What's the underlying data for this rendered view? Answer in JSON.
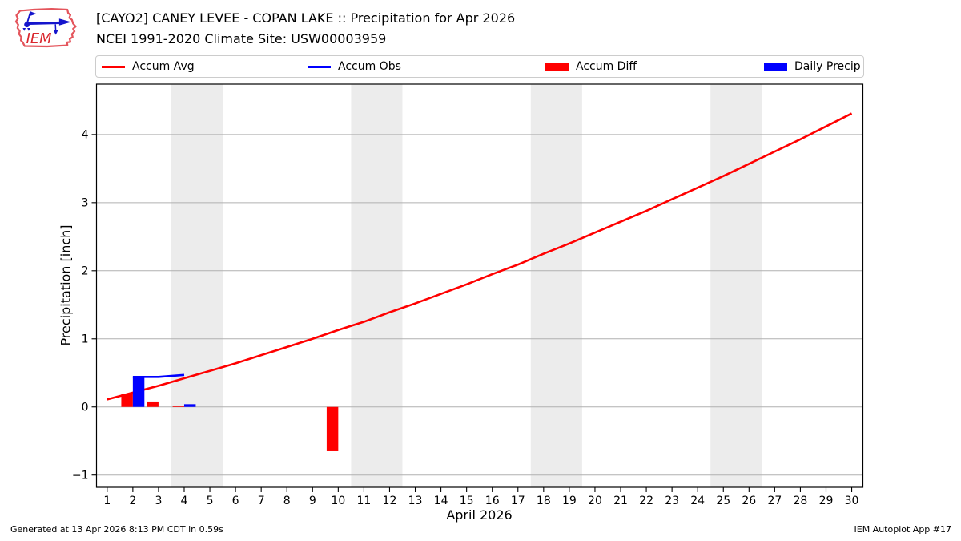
{
  "header": {
    "title_line1": "[CAYO2] CANEY LEVEE - COPAN LAKE :: Precipitation for Apr 2026",
    "title_line2": "NCEI 1991-2020 Climate Site: USW00003959",
    "logo_text": "IEM"
  },
  "legend": [
    {
      "label": "Accum Avg",
      "swatch": "line",
      "color": "#ff0000"
    },
    {
      "label": "Accum Obs",
      "swatch": "line",
      "color": "#0000ff"
    },
    {
      "label": "Accum Diff",
      "swatch": "patch",
      "color": "#ff0000"
    },
    {
      "label": "Daily Precip",
      "swatch": "patch",
      "color": "#0000ff"
    }
  ],
  "chart_data": {
    "type": "mixed line+bar",
    "title": "[CAYO2] CANEY LEVEE - COPAN LAKE :: Precipitation for Apr 2026",
    "subtitle": "NCEI 1991-2020 Climate Site: USW00003959",
    "xlabel": "April 2026",
    "ylabel": "Precipitation [inch]",
    "xlim": [
      0.585,
      30.435
    ],
    "ylim": [
      -1.18,
      4.74
    ],
    "xticks": [
      1,
      2,
      3,
      4,
      5,
      6,
      7,
      8,
      9,
      10,
      11,
      12,
      13,
      14,
      15,
      16,
      17,
      18,
      19,
      20,
      21,
      22,
      23,
      24,
      25,
      26,
      27,
      28,
      29,
      30
    ],
    "yticks": [
      -1,
      0,
      1,
      2,
      3,
      4
    ],
    "grid": "horizontal",
    "grid_color": "#b0b0b0",
    "weekend_band_color": "#ececec",
    "weekend_bands": [
      [
        3.5,
        5.5
      ],
      [
        10.5,
        12.5
      ],
      [
        17.5,
        19.5
      ],
      [
        24.5,
        26.5
      ]
    ],
    "bar_width": 0.45,
    "series": [
      {
        "name": "Accum Avg",
        "type": "line",
        "color": "#ff0000",
        "x": [
          1,
          2,
          3,
          4,
          5,
          6,
          7,
          8,
          9,
          10,
          11,
          12,
          13,
          14,
          15,
          16,
          17,
          18,
          19,
          20,
          21,
          22,
          23,
          24,
          25,
          26,
          27,
          28,
          29,
          30
        ],
        "y": [
          0.11,
          0.21,
          0.31,
          0.42,
          0.53,
          0.64,
          0.76,
          0.88,
          1.0,
          1.13,
          1.25,
          1.39,
          1.52,
          1.66,
          1.8,
          1.95,
          2.09,
          2.25,
          2.4,
          2.56,
          2.72,
          2.88,
          3.05,
          3.22,
          3.39,
          3.57,
          3.75,
          3.93,
          4.12,
          4.31
        ]
      },
      {
        "name": "Accum Obs",
        "type": "line",
        "color": "#0000ff",
        "x": [
          2,
          3,
          4
        ],
        "y": [
          0.44,
          0.44,
          0.47
        ]
      },
      {
        "name": "Accum Diff",
        "type": "bar",
        "align": "left",
        "color": "#ff0000",
        "x": [
          2,
          3,
          4,
          10
        ],
        "y": [
          0.19,
          0.08,
          0.02,
          -0.65
        ]
      },
      {
        "name": "Daily Precip",
        "type": "bar",
        "align": "right",
        "color": "#0000ff",
        "x": [
          2,
          4
        ],
        "y": [
          0.44,
          0.04
        ]
      }
    ]
  },
  "footer": {
    "left": "Generated at 13 Apr 2026 8:13 PM CDT in 0.59s",
    "right": "IEM Autoplot App #17"
  }
}
